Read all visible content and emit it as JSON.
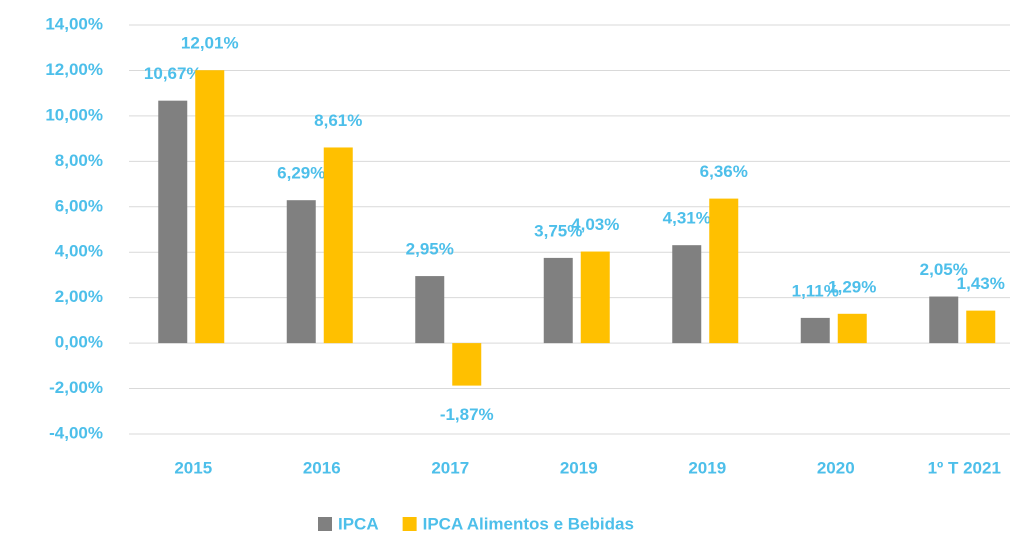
{
  "chart_data": {
    "type": "bar",
    "categories": [
      "2015",
      "2016",
      "2017",
      "2019",
      "2019",
      "2020",
      "1º T 2021"
    ],
    "series": [
      {
        "name": "IPCA",
        "color": "#808080",
        "values": [
          10.67,
          6.29,
          2.95,
          3.75,
          4.31,
          1.11,
          2.05
        ],
        "value_labels": [
          "10,67%",
          "6,29%",
          "2,95%",
          "3,75%",
          "4,31%",
          "1,11%",
          "2,05%"
        ]
      },
      {
        "name": "IPCA Alimentos e Bebidas",
        "color": "#ffc000",
        "values": [
          12.01,
          8.61,
          -1.87,
          4.03,
          6.36,
          1.29,
          1.43
        ],
        "value_labels": [
          "12,01%",
          "8,61%",
          "-1,87%",
          "4,03%",
          "6,36%",
          "1,29%",
          "1,43%"
        ]
      }
    ],
    "ylim": [
      -4,
      14
    ],
    "yticks": [
      {
        "value": -4,
        "label": "-4,00%"
      },
      {
        "value": -2,
        "label": "-2,00%"
      },
      {
        "value": 0,
        "label": "0,00%"
      },
      {
        "value": 2,
        "label": "2,00%"
      },
      {
        "value": 4,
        "label": "4,00%"
      },
      {
        "value": 6,
        "label": "6,00%"
      },
      {
        "value": 8,
        "label": "8,00%"
      },
      {
        "value": 10,
        "label": "10,00%"
      },
      {
        "value": 12,
        "label": "12,00%"
      },
      {
        "value": 14,
        "label": "14,00%"
      }
    ],
    "grid": true,
    "legend": "bottom"
  }
}
